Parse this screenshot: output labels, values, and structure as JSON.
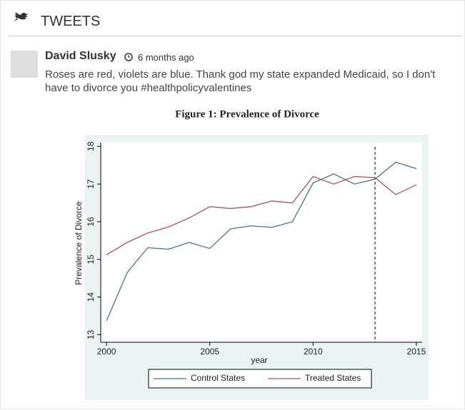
{
  "header": {
    "title": "TWEETS"
  },
  "tweet": {
    "author": "David Slusky",
    "time": "6 months ago",
    "text_lines": [
      "Roses are red, violets are blue. Thank god my state expanded Medicaid, so I don't",
      "have to divorce you #healthpolicyvalentines"
    ]
  },
  "chart_data": {
    "type": "line",
    "title": "Figure 1: Prevalence of Divorce",
    "x_label": "year",
    "y_label": "Prevalence of Divorce",
    "x": [
      2000,
      2001,
      2002,
      2003,
      2004,
      2005,
      2006,
      2007,
      2008,
      2009,
      2010,
      2011,
      2012,
      2013,
      2014,
      2015
    ],
    "series": [
      {
        "name": "Control States",
        "color": "#4f6f8c",
        "values": [
          13.37,
          14.65,
          15.31,
          15.27,
          15.45,
          15.29,
          15.81,
          15.89,
          15.85,
          16.0,
          17.03,
          17.27,
          17.0,
          17.13,
          17.58,
          17.41
        ]
      },
      {
        "name": "Treated States",
        "color": "#a5535d",
        "values": [
          15.12,
          15.45,
          15.7,
          15.86,
          16.1,
          16.4,
          16.35,
          16.4,
          16.55,
          16.5,
          17.2,
          17.0,
          17.2,
          17.17,
          16.72,
          16.98
        ]
      }
    ],
    "xlim": [
      1999.72,
      2015.28
    ],
    "xticks": [
      2000,
      2005,
      2010,
      2015
    ],
    "ylim": [
      12.8,
      18.1
    ],
    "yticks": [
      13,
      14,
      15,
      16,
      17,
      18
    ],
    "vline": 2013
  }
}
